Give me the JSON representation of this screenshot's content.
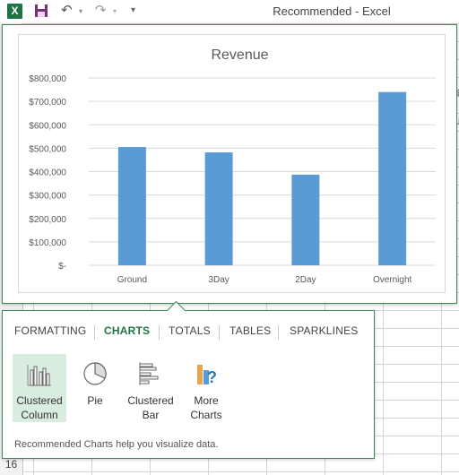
{
  "window": {
    "title": "Recommended - Excel",
    "app_icon_letter": "X",
    "qat_more_glyph": "▾"
  },
  "sheet": {
    "visible_row_number": "16",
    "edge_glyph_1": "%",
    "edge_glyph_2": "u"
  },
  "colors": {
    "excel_green": "#217346",
    "bar_blue": "#5b9bd5",
    "selected_bg": "#d8ecdf"
  },
  "quick_analysis": {
    "tabs": [
      {
        "label": "FORMATTING",
        "active": false
      },
      {
        "label": "CHARTS",
        "active": true
      },
      {
        "label": "TOTALS",
        "active": false
      },
      {
        "label": "TABLES",
        "active": false
      },
      {
        "label": "SPARKLINES",
        "active": false
      }
    ],
    "options": [
      {
        "label": "Clustered\nColumn",
        "icon": "clustered-column-chart-icon",
        "selected": true
      },
      {
        "label": "Pie",
        "icon": "pie-chart-icon",
        "selected": false
      },
      {
        "label": "Clustered\nBar",
        "icon": "clustered-bar-chart-icon",
        "selected": false
      },
      {
        "label": "More\nCharts",
        "icon": "more-charts-icon",
        "selected": false
      }
    ],
    "footer": "Recommended Charts help you visualize data."
  },
  "chart_data": {
    "type": "bar",
    "title": "Revenue",
    "categories": [
      "Ground",
      "3Day",
      "2Day",
      "Overnight"
    ],
    "values": [
      505000,
      482000,
      387000,
      740000
    ],
    "ylim": [
      0,
      800000
    ],
    "ytick_labels": [
      "$-",
      "$100,000",
      "$200,000",
      "$300,000",
      "$400,000",
      "$500,000",
      "$600,000",
      "$700,000",
      "$800,000"
    ],
    "grid": true,
    "legend": "none"
  }
}
